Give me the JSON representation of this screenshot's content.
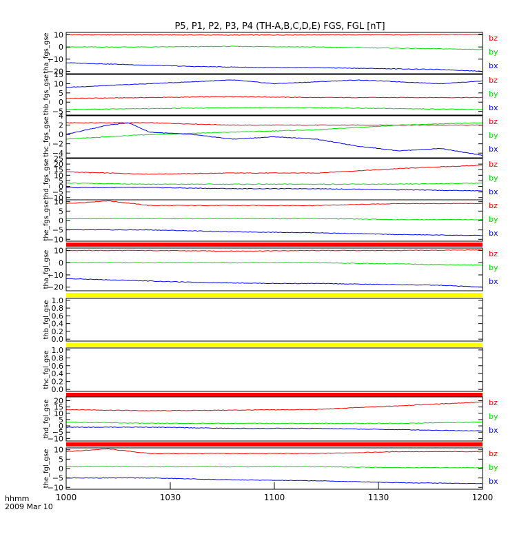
{
  "title": "P5, P1, P2, P3, P4 (TH-A,B,C,D,E) FGS, FGL [nT]",
  "time_label": "hhmm",
  "date_label": "2009 Mar 10",
  "colors": {
    "bz": "#ff0000",
    "by": "#00dd00",
    "bx": "#0000ff",
    "frame": "#000000",
    "bar_red": "#ff0000",
    "bar_yellow": "#ffff00"
  },
  "chart_data": {
    "type": "line",
    "x_axis": {
      "ticks": [
        "1000",
        "1030",
        "1100",
        "1130",
        "1200"
      ]
    },
    "panels": [
      {
        "ylabel": "tha_fgs_gse",
        "ylim": [
          -22,
          12
        ],
        "yticks": [
          "10",
          "0",
          "−10",
          "−20"
        ],
        "ytick_vals": [
          10,
          0,
          -10,
          -20
        ],
        "legend": [
          "bz",
          "by",
          "bx"
        ],
        "series": [
          {
            "name": "bz",
            "x": [
              0,
              20,
              40,
              60,
              80,
              100
            ],
            "y": [
              10,
              10,
              9.8,
              10,
              10,
              10.5
            ]
          },
          {
            "name": "by",
            "x": [
              0,
              20,
              40,
              60,
              80,
              100
            ],
            "y": [
              0,
              0,
              0.5,
              0,
              -1,
              -2
            ]
          },
          {
            "name": "bx",
            "x": [
              0,
              10,
              20,
              30,
              40,
              50,
              60,
              70,
              80,
              90,
              100
            ],
            "y": [
              -13,
              -14,
              -15,
              -16,
              -16.5,
              -17,
              -17,
              -17.5,
              -18,
              -18.5,
              -20
            ]
          }
        ]
      },
      {
        "ylabel": "thb_fgs_gse",
        "ylim": [
          -7,
          15
        ],
        "yticks": [
          "15",
          "10",
          "5",
          "0",
          "−5"
        ],
        "ytick_vals": [
          15,
          10,
          5,
          0,
          -5
        ],
        "legend": [
          "bz",
          "by",
          "bx"
        ],
        "series": [
          {
            "name": "bz",
            "x": [
              0,
              20,
              40,
              60,
              80,
              100
            ],
            "y": [
              2,
              2.5,
              3,
              2.5,
              2.5,
              2.5
            ]
          },
          {
            "name": "by",
            "x": [
              0,
              20,
              40,
              60,
              80,
              100
            ],
            "y": [
              -4,
              -3.5,
              -3,
              -3,
              -3.5,
              -4
            ]
          },
          {
            "name": "bx",
            "x": [
              0,
              10,
              20,
              30,
              40,
              50,
              60,
              70,
              80,
              90,
              100
            ],
            "y": [
              8,
              9,
              10,
              11,
              12,
              10,
              11,
              12,
              11,
              10,
              11.5
            ]
          }
        ]
      },
      {
        "ylabel": "thc_fgs_gse",
        "ylim": [
          -5,
          4
        ],
        "yticks": [
          "4",
          "2",
          "0",
          "−2",
          "−4"
        ],
        "ytick_vals": [
          4,
          2,
          0,
          -2,
          -4
        ],
        "legend": [
          "bz",
          "by",
          "bx"
        ],
        "series": [
          {
            "name": "bz",
            "x": [
              0,
              20,
              40,
              60,
              80,
              100
            ],
            "y": [
              2.5,
              2.5,
              2,
              2,
              2,
              2
            ]
          },
          {
            "name": "by",
            "x": [
              0,
              20,
              40,
              60,
              80,
              100
            ],
            "y": [
              -1,
              0,
              0.5,
              1,
              2,
              2.5
            ]
          },
          {
            "name": "bx",
            "x": [
              0,
              10,
              15,
              20,
              30,
              40,
              50,
              60,
              70,
              80,
              90,
              100
            ],
            "y": [
              0,
              2,
              2.5,
              0.5,
              0,
              -1,
              -0.5,
              -1,
              -2.5,
              -3.5,
              -3,
              -4.5
            ]
          }
        ]
      },
      {
        "ylabel": "thd_fgs_gse",
        "ylim": [
          -12,
          25
        ],
        "yticks": [
          "25",
          "20",
          "15",
          "10",
          "5",
          "0",
          "−5",
          "−10"
        ],
        "ytick_vals": [
          25,
          20,
          15,
          10,
          5,
          0,
          -5,
          -10
        ],
        "legend": [
          "bz",
          "by",
          "bx"
        ],
        "series": [
          {
            "name": "bz",
            "x": [
              0,
              20,
              40,
              60,
              80,
              100
            ],
            "y": [
              13,
              11,
              12,
              12,
              16,
              19
            ]
          },
          {
            "name": "by",
            "x": [
              0,
              20,
              40,
              60,
              80,
              100
            ],
            "y": [
              3,
              2,
              2,
              2,
              2,
              3
            ]
          },
          {
            "name": "bx",
            "x": [
              0,
              20,
              40,
              60,
              80,
              100
            ],
            "y": [
              -1,
              -1,
              -2,
              -2,
              -3,
              -4
            ]
          }
        ]
      },
      {
        "ylabel": "the_fgs_gse",
        "ylim": [
          -11,
          11
        ],
        "yticks": [
          "10",
          "5",
          "0",
          "−5",
          "−10"
        ],
        "ytick_vals": [
          10,
          5,
          0,
          -5,
          -10
        ],
        "legend": [
          "bz",
          "by",
          "bx"
        ],
        "series": [
          {
            "name": "bz",
            "x": [
              0,
              10,
              20,
              40,
              60,
              80,
              100
            ],
            "y": [
              9,
              10.5,
              8,
              8,
              8,
              9,
              9
            ]
          },
          {
            "name": "by",
            "x": [
              0,
              20,
              40,
              60,
              80,
              100
            ],
            "y": [
              1,
              1,
              1,
              1,
              0.5,
              0.5
            ]
          },
          {
            "name": "bx",
            "x": [
              0,
              20,
              40,
              60,
              80,
              100
            ],
            "y": [
              -5,
              -5,
              -6,
              -6.5,
              -7.5,
              -8
            ]
          }
        ]
      },
      {
        "ylabel": "tha_fgl_gse",
        "ylim": [
          -23,
          12
        ],
        "yticks": [
          "10",
          "0",
          "−10",
          "−20"
        ],
        "ytick_vals": [
          10,
          0,
          -10,
          -20
        ],
        "legend": [
          "bz",
          "by",
          "bx"
        ],
        "series": [
          {
            "name": "bz",
            "x": [
              0,
              20,
              40,
              60,
              80,
              100
            ],
            "y": [
              10,
              10,
              9.5,
              10,
              10,
              10.5
            ]
          },
          {
            "name": "by",
            "x": [
              0,
              20,
              40,
              60,
              80,
              100
            ],
            "y": [
              0,
              0,
              0,
              0,
              -1,
              -2
            ]
          },
          {
            "name": "bx",
            "x": [
              0,
              10,
              20,
              30,
              40,
              50,
              60,
              70,
              80,
              90,
              100
            ],
            "y": [
              -13,
              -14,
              -15,
              -16,
              -16.5,
              -17,
              -17,
              -17.5,
              -18,
              -18.5,
              -20
            ]
          }
        ]
      },
      {
        "ylabel": "thb_fgl_gse",
        "ylim": [
          -0.05,
          1.05
        ],
        "yticks": [
          "1.0",
          "0.8",
          "0.6",
          "0.4",
          "0.2",
          "0.0"
        ],
        "ytick_vals": [
          1.0,
          0.8,
          0.6,
          0.4,
          0.2,
          0.0
        ],
        "legend": [],
        "series": []
      },
      {
        "ylabel": "thc_fgl_gse",
        "ylim": [
          -0.05,
          1.05
        ],
        "yticks": [
          "1.0",
          "0.8",
          "0.6",
          "0.4",
          "0.2",
          "0.0"
        ],
        "ytick_vals": [
          1.0,
          0.8,
          0.6,
          0.4,
          0.2,
          0.0
        ],
        "legend": [],
        "series": []
      },
      {
        "ylabel": "thd_fgl_gse",
        "ylim": [
          -12,
          23
        ],
        "yticks": [
          "20",
          "15",
          "10",
          "5",
          "0",
          "−5",
          "−10"
        ],
        "ytick_vals": [
          20,
          15,
          10,
          5,
          0,
          -5,
          -10
        ],
        "legend": [
          "bz",
          "by",
          "bx"
        ],
        "series": [
          {
            "name": "bz",
            "x": [
              0,
              20,
              40,
              60,
              80,
              100
            ],
            "y": [
              13,
              12,
              12.5,
              13,
              16,
              19
            ]
          },
          {
            "name": "by",
            "x": [
              0,
              20,
              40,
              60,
              80,
              100
            ],
            "y": [
              3,
              2,
              2,
              2,
              2,
              3
            ]
          },
          {
            "name": "bx",
            "x": [
              0,
              20,
              40,
              60,
              80,
              100
            ],
            "y": [
              -1,
              -1,
              -2,
              -2,
              -3,
              -4
            ]
          }
        ]
      },
      {
        "ylabel": "the_fgl_gse",
        "ylim": [
          -11,
          11
        ],
        "yticks": [
          "10",
          "5",
          "0",
          "−5",
          "−10"
        ],
        "ytick_vals": [
          10,
          5,
          0,
          -5,
          -10
        ],
        "legend": [
          "bz",
          "by",
          "bx"
        ],
        "series": [
          {
            "name": "bz",
            "x": [
              0,
              10,
              20,
              40,
              60,
              80,
              100
            ],
            "y": [
              9,
              10.5,
              8,
              8,
              8,
              9,
              9
            ]
          },
          {
            "name": "by",
            "x": [
              0,
              20,
              40,
              60,
              80,
              100
            ],
            "y": [
              1,
              1,
              1,
              1,
              0.5,
              0.5
            ]
          },
          {
            "name": "bx",
            "x": [
              0,
              20,
              40,
              60,
              80,
              100
            ],
            "y": [
              -5,
              -5,
              -6,
              -6.5,
              -7.5,
              -8
            ]
          }
        ]
      }
    ],
    "separators": [
      "bar_red",
      "bar_yellow",
      "bar_yellow",
      "bar_red",
      "bar_red"
    ]
  }
}
